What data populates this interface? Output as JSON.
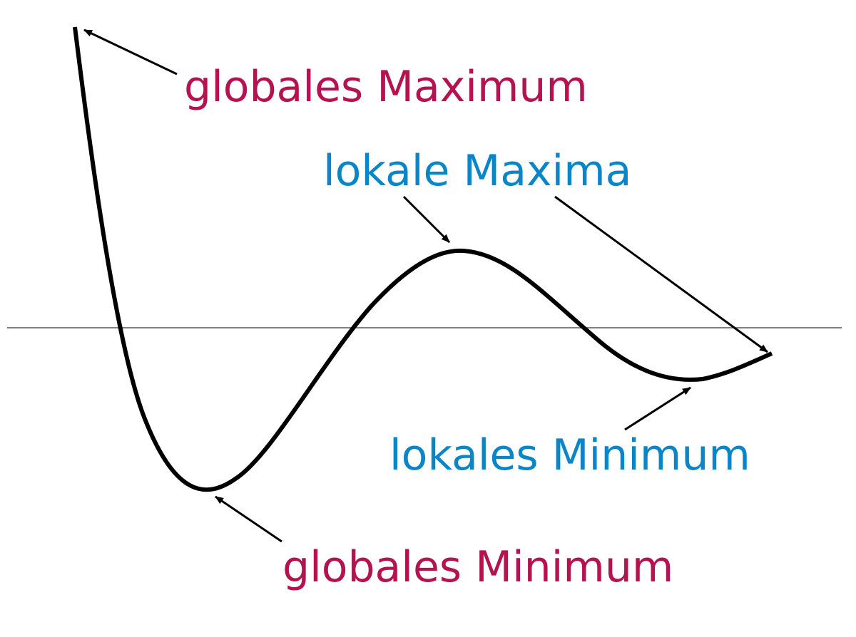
{
  "labels": {
    "global_max": "globales Maximum",
    "local_max": "lokale Maxima",
    "local_min": "lokales Minimum",
    "global_min": "globales Minimum"
  },
  "colors": {
    "global": "#b5124f",
    "local": "#0a86c8",
    "curve": "#000000",
    "axis": "#808080",
    "arrow": "#000000"
  }
}
